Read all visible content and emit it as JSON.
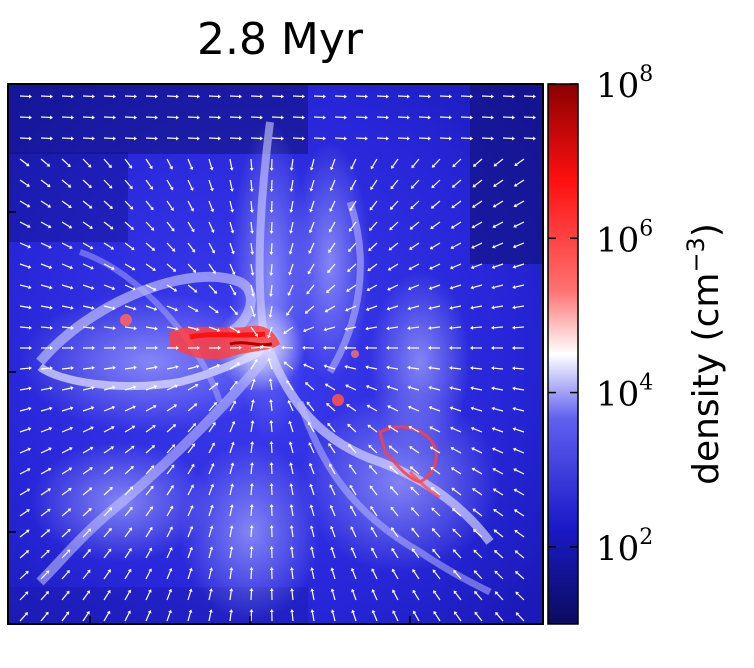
{
  "chart_data": {
    "type": "heatmap",
    "title": "2.8 Myr",
    "colorbar": {
      "label_main": "density (cm",
      "label_exp": "−3",
      "label_close": ")",
      "scale": "log",
      "range": [
        10,
        100000000
      ],
      "ticks": [
        {
          "base": "10",
          "exp": "2",
          "value": 100
        },
        {
          "base": "10",
          "exp": "4",
          "value": 10000
        },
        {
          "base": "10",
          "exp": "6",
          "value": 1000000
        },
        {
          "base": "10",
          "exp": "8",
          "value": 100000000
        }
      ],
      "colors": [
        "#0b0b5e",
        "#2222dd",
        "#ffffff",
        "#ff1111",
        "#8a0000"
      ]
    },
    "overlay": "velocity vectors (white arrows)",
    "axes_ticks_labeled": false
  }
}
